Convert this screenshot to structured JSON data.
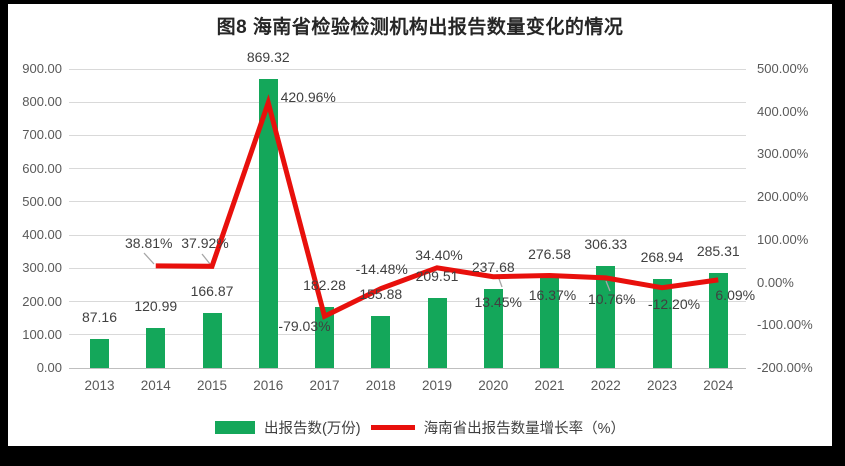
{
  "chart_data": {
    "type": "bar+line-combo",
    "title": "图8 海南省检验检测机构出报告数量变化的情况",
    "categories": [
      "2013",
      "2014",
      "2015",
      "2016",
      "2017",
      "2018",
      "2019",
      "2020",
      "2021",
      "2022",
      "2023",
      "2024"
    ],
    "series": [
      {
        "name": "出报告数(万份)",
        "type": "bar",
        "axis": "left",
        "color": "#14a75a",
        "values": [
          87.16,
          120.99,
          166.87,
          869.32,
          182.28,
          155.88,
          209.51,
          237.68,
          276.58,
          306.33,
          268.94,
          285.31
        ],
        "labels": [
          "87.16",
          "120.99",
          "166.87",
          "869.32",
          "182.28",
          "155.88",
          "209.51",
          "237.68",
          "276.58",
          "306.33",
          "268.94",
          "285.31"
        ]
      },
      {
        "name": "海南省出报告数量增长率（%）",
        "type": "line",
        "axis": "right",
        "color": "#e8100c",
        "values": [
          null,
          38.81,
          37.92,
          420.96,
          -79.03,
          -14.48,
          34.4,
          13.45,
          16.37,
          10.76,
          -12.2,
          6.09
        ],
        "labels": [
          null,
          "38.81%",
          "37.92%",
          "420.96%",
          "-79.03%",
          "-14.48%",
          "34.40%",
          "13.45%",
          "16.37%",
          "10.76%",
          "-12.20%",
          "6.09%"
        ]
      }
    ],
    "left_axis": {
      "min": 0,
      "max": 900,
      "step": 100,
      "ticks": [
        "0.00",
        "100.00",
        "200.00",
        "300.00",
        "400.00",
        "500.00",
        "600.00",
        "700.00",
        "800.00",
        "900.00"
      ]
    },
    "right_axis": {
      "min": -200,
      "max": 500,
      "step": 100,
      "ticks": [
        "-200.00%",
        "-100.00%",
        "0.00%",
        "100.00%",
        "200.00%",
        "300.00%",
        "400.00%",
        "500.00%"
      ]
    },
    "grid": true,
    "legend_position": "bottom",
    "colors": {
      "background": "#ffffff",
      "frame_border": "#000000",
      "gridline": "#d9d9d9",
      "axis_line": "#bfbfbf",
      "tick_text": "#595959",
      "label_text": "#404040",
      "leader_line": "#a6a6a6"
    }
  }
}
